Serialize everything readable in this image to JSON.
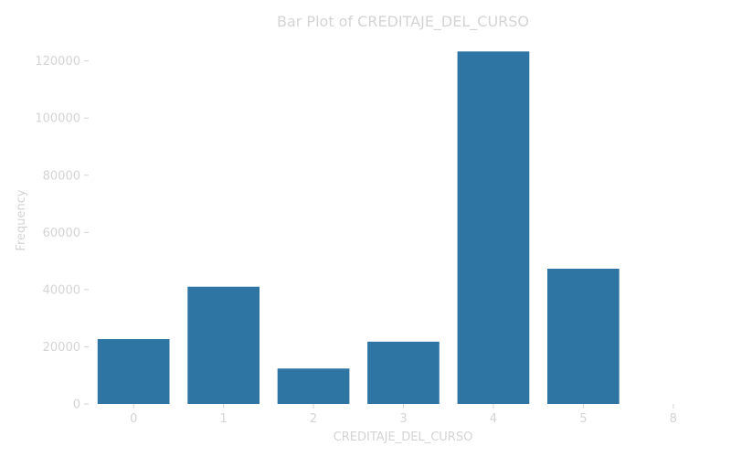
{
  "chart_data": {
    "type": "bar",
    "title": "Bar Plot of CREDITAJE_DEL_CURSO",
    "xlabel": "CREDITAJE_DEL_CURSO",
    "ylabel": "Frequency",
    "categories": [
      "0",
      "1",
      "2",
      "3",
      "4",
      "5",
      "8"
    ],
    "values": [
      22700,
      41000,
      12400,
      21800,
      123300,
      47300,
      0
    ],
    "ylim": [
      0,
      128000
    ],
    "yticks": [
      0,
      20000,
      40000,
      60000,
      80000,
      100000,
      120000
    ],
    "ytick_labels": [
      "0",
      "20000",
      "40000",
      "60000",
      "80000",
      "100000",
      "120000"
    ],
    "grid": false,
    "bar_color": "#2e75a3",
    "text_color": "#d4d4d4"
  }
}
